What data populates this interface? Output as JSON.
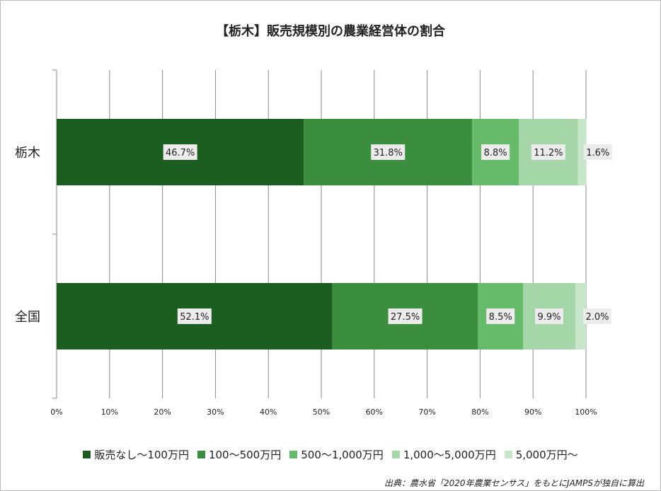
{
  "chart_data": {
    "type": "bar",
    "orientation": "horizontal",
    "stacked": "percent",
    "title": "【栃木】販売規模別の農業経営体の割合",
    "categories": [
      "栃木",
      "全国"
    ],
    "series": [
      {
        "name": "販売なし～100万円",
        "color": "#1c5e20",
        "values": [
          46.7,
          52.1
        ],
        "labels": [
          "46.7%",
          "52.1%"
        ]
      },
      {
        "name": "100～500万円",
        "color": "#3a8e3e",
        "values": [
          31.8,
          27.5
        ],
        "labels": [
          "31.8%",
          "27.5%"
        ]
      },
      {
        "name": "500～1,000万円",
        "color": "#66bb6a",
        "values": [
          8.8,
          8.5
        ],
        "labels": [
          "8.8%",
          "8.5%"
        ]
      },
      {
        "name": "1,000～5,000万円",
        "color": "#a5d6a7",
        "values": [
          11.2,
          9.9
        ],
        "labels": [
          "11.2%",
          "9.9%"
        ]
      },
      {
        "name": "5,000万円～",
        "color": "#c8e6c9",
        "values": [
          1.6,
          2.0
        ],
        "labels": [
          "1.6%",
          "2.0%"
        ]
      }
    ],
    "xlim": [
      0,
      100
    ],
    "xticks": [
      "0%",
      "10%",
      "20%",
      "30%",
      "40%",
      "50%",
      "60%",
      "70%",
      "80%",
      "90%",
      "100%"
    ],
    "grid": "vertical",
    "legend": "bottom"
  },
  "source_note": "出典：農水省「2020年農業センサス」をもとにJAMPSが独自に算出"
}
